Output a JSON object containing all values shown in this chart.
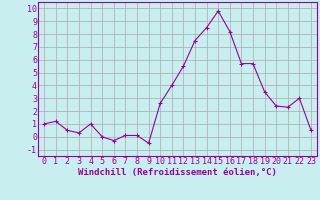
{
  "x": [
    0,
    1,
    2,
    3,
    4,
    5,
    6,
    7,
    8,
    9,
    10,
    11,
    12,
    13,
    14,
    15,
    16,
    17,
    18,
    19,
    20,
    21,
    22,
    23
  ],
  "y": [
    1,
    1.2,
    0.5,
    0.3,
    1.0,
    0.0,
    -0.3,
    0.1,
    0.1,
    -0.5,
    2.6,
    4.0,
    5.5,
    7.5,
    8.5,
    9.8,
    8.2,
    5.7,
    5.7,
    3.5,
    2.4,
    2.3,
    3.0,
    0.5
  ],
  "line_color": "#990099",
  "marker": "+",
  "marker_size": 3,
  "bg_color": "#c8eef0",
  "grid_color": "#aaaaaa",
  "xlabel": "Windchill (Refroidissement éolien,°C)",
  "xlabel_fontsize": 6.5,
  "ylabel_ticks": [
    -1,
    0,
    1,
    2,
    3,
    4,
    5,
    6,
    7,
    8,
    9,
    10
  ],
  "xlim": [
    -0.5,
    23.5
  ],
  "ylim": [
    -1.5,
    10.5
  ],
  "tick_fontsize": 6,
  "label_color": "#990099"
}
